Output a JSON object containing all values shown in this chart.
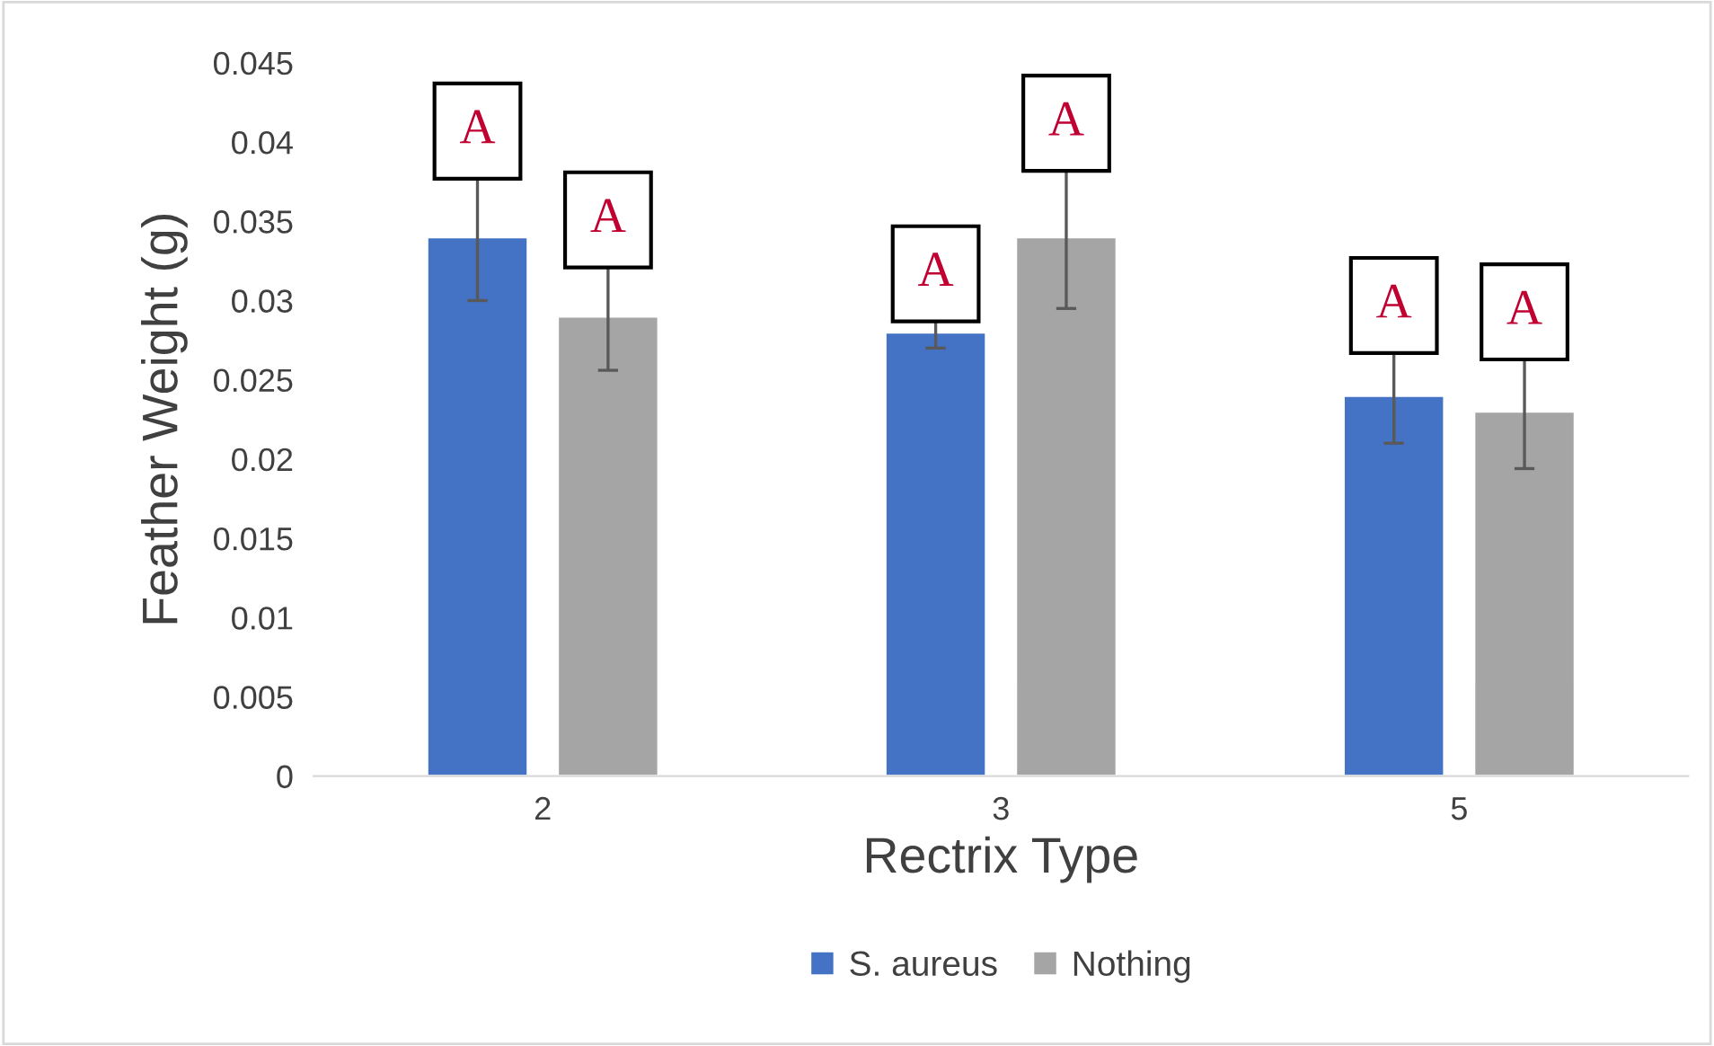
{
  "chart_data": {
    "type": "bar",
    "xlabel": "Rectrix Type",
    "ylabel": "Feather Weight (g)",
    "categories": [
      "2",
      "3",
      "5"
    ],
    "series": [
      {
        "name": "S. aureus",
        "color": "#4472c4",
        "values": [
          0.034,
          0.028,
          0.024
        ],
        "errors": [
          0.004,
          0.001,
          0.003
        ]
      },
      {
        "name": "Nothing",
        "color": "#a5a5a5",
        "values": [
          0.029,
          0.034,
          0.023
        ],
        "errors": [
          0.0034,
          0.0045,
          0.0036
        ]
      }
    ],
    "ylim": [
      0,
      0.045
    ],
    "yticks": [
      0,
      0.005,
      0.01,
      0.015,
      0.02,
      0.025,
      0.03,
      0.035,
      0.04,
      0.045
    ],
    "annotations": [
      "A",
      "A",
      "A",
      "A",
      "A",
      "A"
    ],
    "grid": false,
    "legend": "bottom"
  }
}
